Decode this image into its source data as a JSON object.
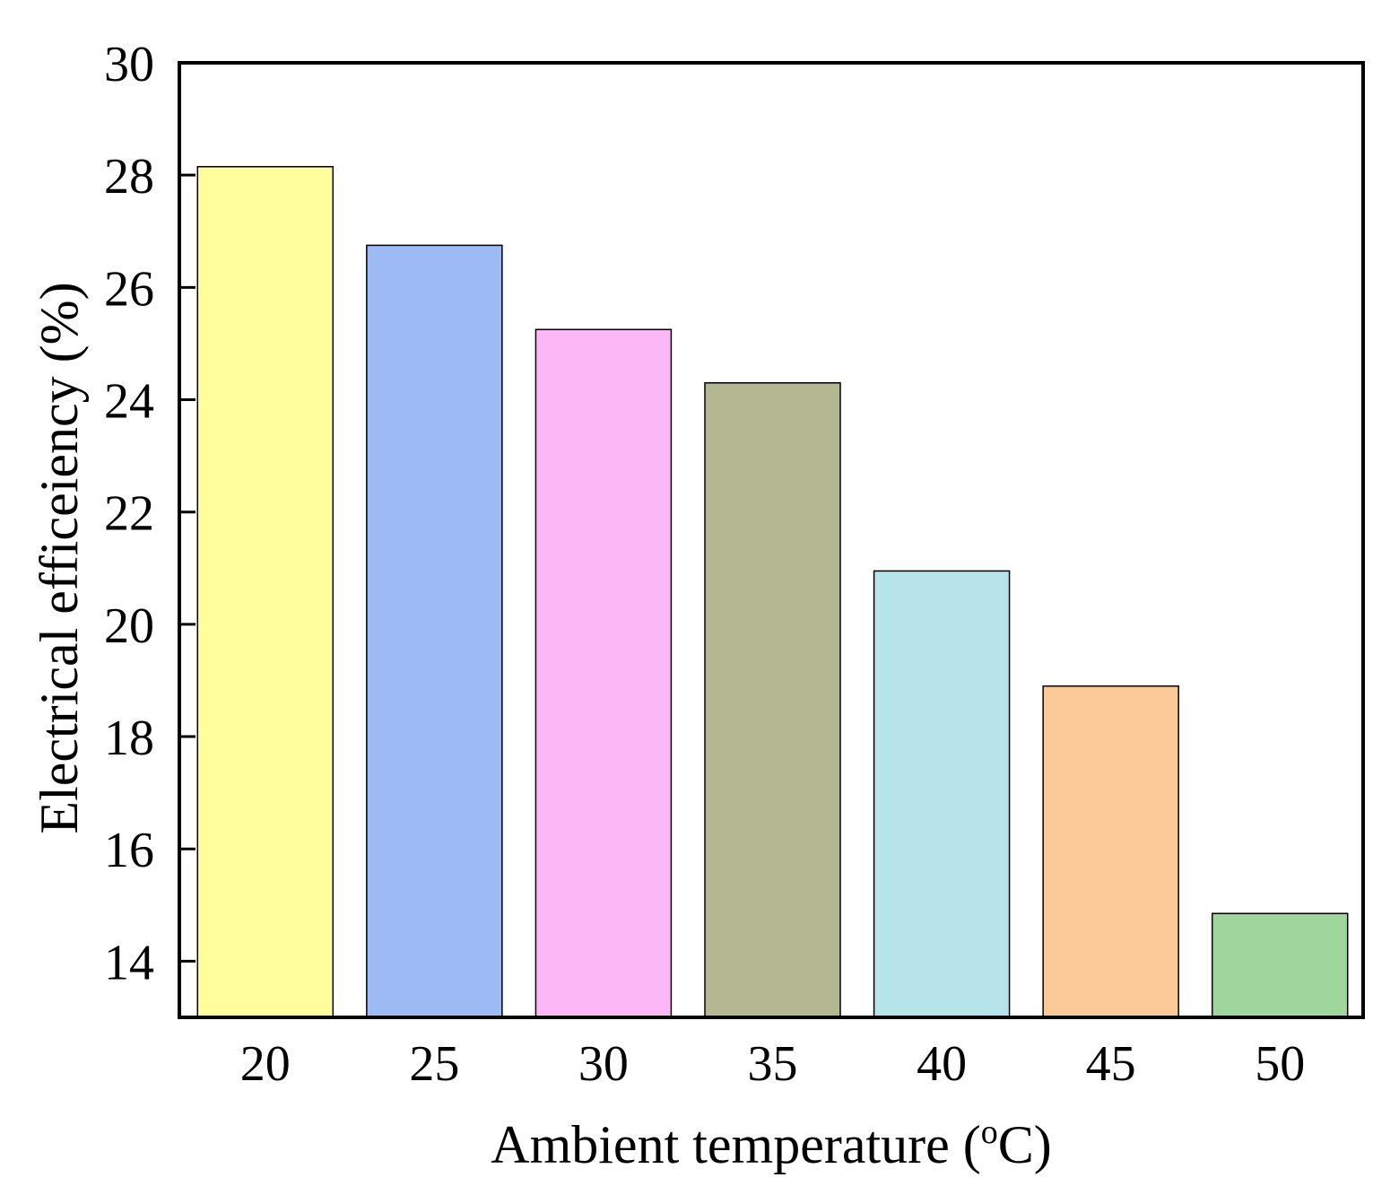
{
  "chart_data": {
    "type": "bar",
    "categories": [
      "20",
      "25",
      "30",
      "35",
      "40",
      "45",
      "50"
    ],
    "values": [
      28.15,
      26.75,
      25.25,
      24.3,
      20.95,
      18.9,
      14.85
    ],
    "colors": [
      "#fffd9c",
      "#9dbaf4",
      "#fcb8f6",
      "#b3b892",
      "#b7e4ea",
      "#fbc998",
      "#9fd69b"
    ],
    "ylim": [
      13,
      30
    ],
    "yticks": [
      14,
      16,
      18,
      20,
      22,
      24,
      26,
      28,
      30
    ],
    "ytick_labels": [
      "14",
      "16",
      "18",
      "20",
      "22",
      "24",
      "26",
      "28",
      "30"
    ],
    "xlabel_main": "Ambient temperature (",
    "xlabel_sup": "o",
    "xlabel_end": "C)",
    "ylabel": "Electrical efficeiency (%)",
    "title": ""
  }
}
